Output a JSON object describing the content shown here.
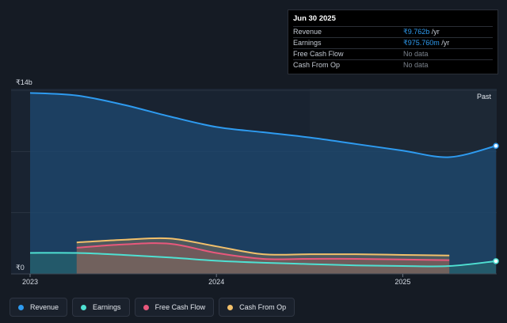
{
  "tooltip": {
    "date": "Jun 30 2025",
    "rows": [
      {
        "label": "Revenue",
        "value": "₹9.762b",
        "unit": " /yr",
        "has_value": true
      },
      {
        "label": "Earnings",
        "value": "₹975.760m",
        "unit": " /yr",
        "has_value": true
      },
      {
        "label": "Free Cash Flow",
        "value": "No data",
        "unit": "",
        "has_value": false
      },
      {
        "label": "Cash From Op",
        "value": "No data",
        "unit": "",
        "has_value": false
      }
    ]
  },
  "past_label": "Past",
  "legend": [
    {
      "label": "Revenue",
      "color": "#2e9bf0"
    },
    {
      "label": "Earnings",
      "color": "#4fe0d2"
    },
    {
      "label": "Free Cash Flow",
      "color": "#e8587c"
    },
    {
      "label": "Cash From Op",
      "color": "#f2c06b"
    }
  ],
  "chart_data": {
    "type": "area",
    "title": "",
    "xlabel": "",
    "ylabel": "",
    "ylim": [
      0,
      14
    ],
    "y_ticks": [
      {
        "value": 14,
        "label": "₹14b"
      },
      {
        "value": 0,
        "label": "₹0"
      }
    ],
    "x_ticks": [
      {
        "value": 2023.0,
        "label": "2023"
      },
      {
        "value": 2024.0,
        "label": "2024"
      },
      {
        "value": 2025.0,
        "label": "2025"
      }
    ],
    "xlim": [
      2023.0,
      2025.5
    ],
    "series": [
      {
        "name": "Revenue",
        "color": "#2e9bf0",
        "x": [
          2023.0,
          2023.25,
          2023.5,
          2023.75,
          2024.0,
          2024.25,
          2024.5,
          2024.75,
          2025.0,
          2025.25,
          2025.5
        ],
        "y": [
          13.8,
          13.6,
          12.9,
          12.0,
          11.2,
          10.8,
          10.4,
          9.9,
          9.4,
          8.9,
          9.762
        ]
      },
      {
        "name": "Earnings",
        "color": "#4fe0d2",
        "x": [
          2023.0,
          2023.25,
          2023.5,
          2023.75,
          2024.0,
          2024.25,
          2024.5,
          2024.75,
          2025.0,
          2025.25,
          2025.5
        ],
        "y": [
          1.6,
          1.6,
          1.45,
          1.25,
          1.0,
          0.85,
          0.75,
          0.65,
          0.6,
          0.6,
          0.976
        ]
      },
      {
        "name": "Free Cash Flow",
        "color": "#e8587c",
        "x": [
          2023.25,
          2023.5,
          2023.75,
          2024.0,
          2024.25,
          2024.5,
          2024.75,
          2025.0,
          2025.25
        ],
        "y": [
          2.0,
          2.25,
          2.3,
          1.6,
          1.15,
          1.15,
          1.15,
          1.1,
          1.05
        ]
      },
      {
        "name": "Cash From Op",
        "color": "#f2c06b",
        "x": [
          2023.25,
          2023.5,
          2023.75,
          2024.0,
          2024.25,
          2024.5,
          2024.75,
          2025.0,
          2025.25
        ],
        "y": [
          2.4,
          2.6,
          2.7,
          2.1,
          1.5,
          1.5,
          1.5,
          1.45,
          1.4
        ]
      }
    ]
  }
}
